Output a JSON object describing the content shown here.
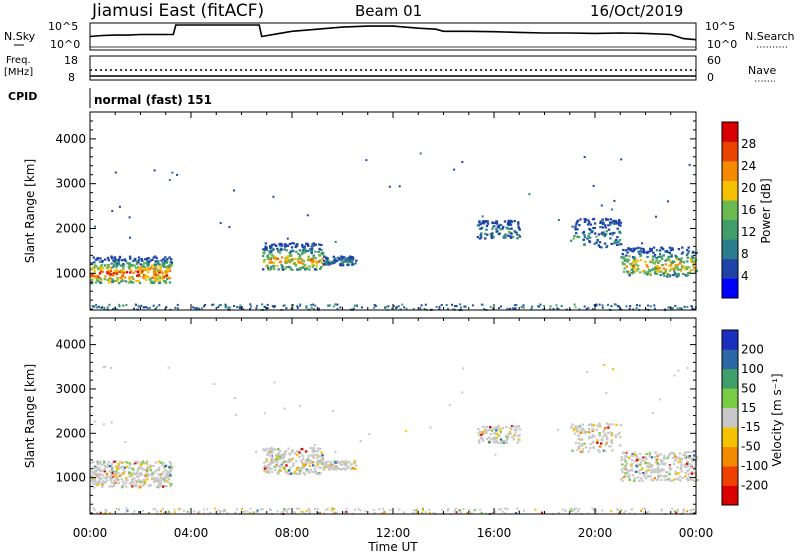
{
  "header": {
    "title": "Jiamusi East (fitACF)",
    "beam": "Beam 01",
    "date": "16/Oct/2019"
  },
  "noise_panel": {
    "left_label": "N.Sky",
    "right_label": "N.Search",
    "left_ticks": [
      "10^5",
      "10^0"
    ],
    "right_ticks": [
      "10^5",
      "10^0"
    ]
  },
  "freq_panel": {
    "left_label_line1": "Freq.",
    "left_label_line2": "[MHz]",
    "right_label": "Nave",
    "left_ticks": [
      "18",
      "8"
    ],
    "right_ticks": [
      "60",
      "0"
    ],
    "cpid_label": "CPID",
    "cpid_value": "normal (fast) 151"
  },
  "time_axis": {
    "tick_labels": [
      "00:00",
      "04:00",
      "08:00",
      "12:00",
      "16:00",
      "20:00",
      "00:00"
    ],
    "label": "Time UT"
  },
  "chart_data": [
    {
      "type": "line",
      "title": "N.Sky",
      "x_hours": [
        0,
        0.5,
        1,
        1.5,
        2,
        2.5,
        3,
        3.3,
        3.4,
        4,
        5,
        6,
        6.7,
        6.8,
        7.5,
        8,
        9,
        10,
        11,
        12,
        13,
        13.7,
        14,
        15,
        16,
        17,
        18,
        19,
        20,
        21,
        22,
        23,
        23.5,
        24
      ],
      "values_norm": [
        0.45,
        0.5,
        0.52,
        0.52,
        0.55,
        0.55,
        0.55,
        0.55,
        1.0,
        1.0,
        1.0,
        1.0,
        1.0,
        0.45,
        0.6,
        0.7,
        0.8,
        0.9,
        0.95,
        0.95,
        0.85,
        0.8,
        0.7,
        0.7,
        0.68,
        0.65,
        0.62,
        0.62,
        0.6,
        0.62,
        0.6,
        0.55,
        0.35,
        0.3
      ]
    },
    {
      "type": "heatmap",
      "title": "",
      "ylabel": "Slant Range [km]",
      "xlabel": "Time UT",
      "xlim_hours": [
        0,
        24
      ],
      "ylim_km": [
        180,
        4600
      ],
      "y_ticks": [
        1000,
        2000,
        3000,
        4000
      ],
      "colorbar_label": "Power [dB]",
      "colorbar_ticks": [
        4,
        8,
        12,
        16,
        20,
        24,
        28
      ],
      "colorbar_colors": [
        "#0000ff",
        "#1f44a8",
        "#2a7d8c",
        "#3f9e6a",
        "#6aba52",
        "#f4c000",
        "#f48a00",
        "#e84400",
        "#d80000"
      ],
      "scatter_regions": [
        {
          "t0": 0.0,
          "t1": 3.2,
          "r_lo": 800,
          "r_hi": 1400,
          "strength": 0.85
        },
        {
          "t0": 6.8,
          "t1": 9.2,
          "r_lo": 1100,
          "r_hi": 1700,
          "strength": 0.7
        },
        {
          "t0": 9.2,
          "t1": 10.5,
          "r_lo": 1200,
          "r_hi": 1400,
          "strength": 0.3
        },
        {
          "t0": 15.3,
          "t1": 17.0,
          "r_lo": 1800,
          "r_hi": 2200,
          "strength": 0.3
        },
        {
          "t0": 19.0,
          "t1": 21.0,
          "r_lo": 1600,
          "r_hi": 2250,
          "strength": 0.35
        },
        {
          "t0": 21.0,
          "t1": 24.0,
          "r_lo": 950,
          "r_hi": 1600,
          "strength": 0.65
        }
      ]
    },
    {
      "type": "heatmap",
      "title": "",
      "ylabel": "Slant Range [km]",
      "xlabel": "Time UT",
      "xlim_hours": [
        0,
        24
      ],
      "ylim_km": [
        180,
        4600
      ],
      "y_ticks": [
        1000,
        2000,
        3000,
        4000
      ],
      "colorbar_label": "Velocity [m s⁻¹]",
      "colorbar_ticks": [
        200,
        100,
        50,
        15,
        -15,
        -50,
        -100,
        -200
      ],
      "colorbar_colors": [
        "#1a2fbf",
        "#2d68a6",
        "#3f9e6a",
        "#77cc44",
        "#c8c8c8",
        "#f4c200",
        "#f48a00",
        "#f04000",
        "#dd0000"
      ],
      "dominant_color": "#c8c8c8"
    }
  ]
}
